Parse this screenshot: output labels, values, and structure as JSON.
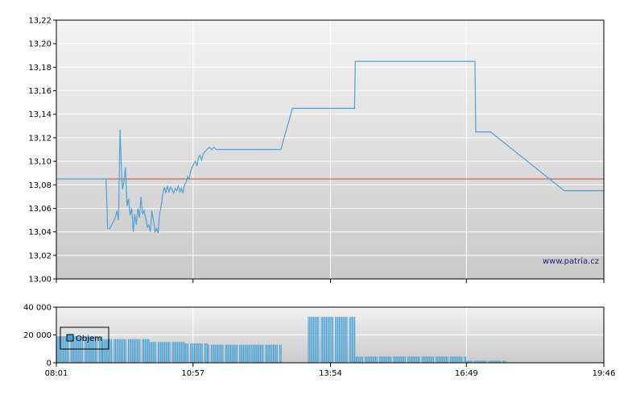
{
  "watermark": "www.patria.cz",
  "colors": {
    "price_line": "#4aa3d6",
    "reference_line": "#d9442e",
    "volume_bar": "#4aa3d6",
    "grid": "#ffffff",
    "frame": "#000000"
  },
  "chart_data": [
    {
      "type": "line",
      "title": "",
      "xlabel": "",
      "ylabel": "",
      "x_ticks": [
        "08:01",
        "10:57",
        "13:54",
        "16:49",
        "19:46"
      ],
      "y_ticks": [
        "13,00",
        "13,02",
        "13,04",
        "13,06",
        "13,08",
        "13,10",
        "13,12",
        "13,14",
        "13,16",
        "13,18",
        "13,20",
        "13,22"
      ],
      "ylim": [
        13.0,
        13.22
      ],
      "xlim": [
        "08:01",
        "19:46"
      ],
      "grid": true,
      "reference_value": 13.085,
      "series": [
        {
          "x": [
            "08:01",
            "09:05",
            "09:07",
            "09:10",
            "09:13",
            "09:17",
            "09:19",
            "09:21",
            "09:23",
            "09:25",
            "09:26",
            "09:28",
            "09:30",
            "09:32",
            "09:34",
            "09:36",
            "09:38",
            "09:40",
            "09:42",
            "09:44",
            "09:46",
            "09:48",
            "09:50",
            "09:52",
            "09:54",
            "09:56",
            "09:58",
            "10:00",
            "10:02",
            "10:04",
            "10:06",
            "10:08",
            "10:10",
            "10:12",
            "10:14",
            "10:16",
            "10:18",
            "10:20",
            "10:22",
            "10:24",
            "10:26",
            "10:28",
            "10:30",
            "10:32",
            "10:34",
            "10:36",
            "10:38",
            "10:40",
            "10:42",
            "10:44",
            "10:46",
            "10:48",
            "10:50",
            "10:52",
            "10:54",
            "10:56",
            "10:58",
            "11:00",
            "11:02",
            "11:04",
            "11:06",
            "11:08",
            "11:10",
            "11:12",
            "11:15",
            "11:18",
            "11:21",
            "11:24",
            "11:27",
            "11:30",
            "12:50",
            "13:05",
            "13:40",
            "14:25",
            "14:26",
            "17:00",
            "17:01",
            "17:20",
            "18:55",
            "19:46"
          ],
          "values": [
            13.085,
            13.085,
            13.043,
            13.043,
            13.047,
            13.052,
            13.058,
            13.05,
            13.127,
            13.09,
            13.076,
            13.082,
            13.095,
            13.062,
            13.068,
            13.054,
            13.06,
            13.04,
            13.055,
            13.046,
            13.06,
            13.052,
            13.07,
            13.055,
            13.058,
            13.052,
            13.044,
            13.046,
            13.04,
            13.058,
            13.05,
            13.04,
            13.043,
            13.039,
            13.056,
            13.062,
            13.072,
            13.078,
            13.073,
            13.079,
            13.074,
            13.078,
            13.076,
            13.073,
            13.077,
            13.075,
            13.079,
            13.074,
            13.077,
            13.073,
            13.08,
            13.082,
            13.087,
            13.085,
            13.092,
            13.095,
            13.098,
            13.1,
            13.096,
            13.103,
            13.105,
            13.101,
            13.106,
            13.108,
            13.11,
            13.112,
            13.11,
            13.112,
            13.11,
            13.11,
            13.11,
            13.145,
            13.145,
            13.145,
            13.185,
            13.185,
            13.125,
            13.125,
            13.075,
            13.075
          ]
        }
      ]
    },
    {
      "type": "bar",
      "title": "",
      "xlabel": "",
      "ylabel": "",
      "x_ticks": [
        "08:01",
        "10:57",
        "13:54",
        "16:49",
        "19:46"
      ],
      "y_ticks": [
        "0",
        "20 000",
        "40 000"
      ],
      "ylim": [
        0,
        40000
      ],
      "legend": "Objem",
      "legend_position": "bottom-left",
      "segments": [
        {
          "from": "08:01",
          "to": "09:00",
          "value": 19000
        },
        {
          "from": "09:00",
          "to": "10:00",
          "value": 17000
        },
        {
          "from": "10:00",
          "to": "10:45",
          "value": 15000
        },
        {
          "from": "10:45",
          "to": "11:15",
          "value": 14000
        },
        {
          "from": "11:15",
          "to": "12:10",
          "value": 13000
        },
        {
          "from": "12:10",
          "to": "12:50",
          "value": 13000
        },
        {
          "from": "13:25",
          "to": "14:25",
          "value": 33000
        },
        {
          "from": "14:25",
          "to": "16:49",
          "value": 4500
        },
        {
          "from": "16:49",
          "to": "17:40",
          "value": 1500
        }
      ]
    }
  ]
}
